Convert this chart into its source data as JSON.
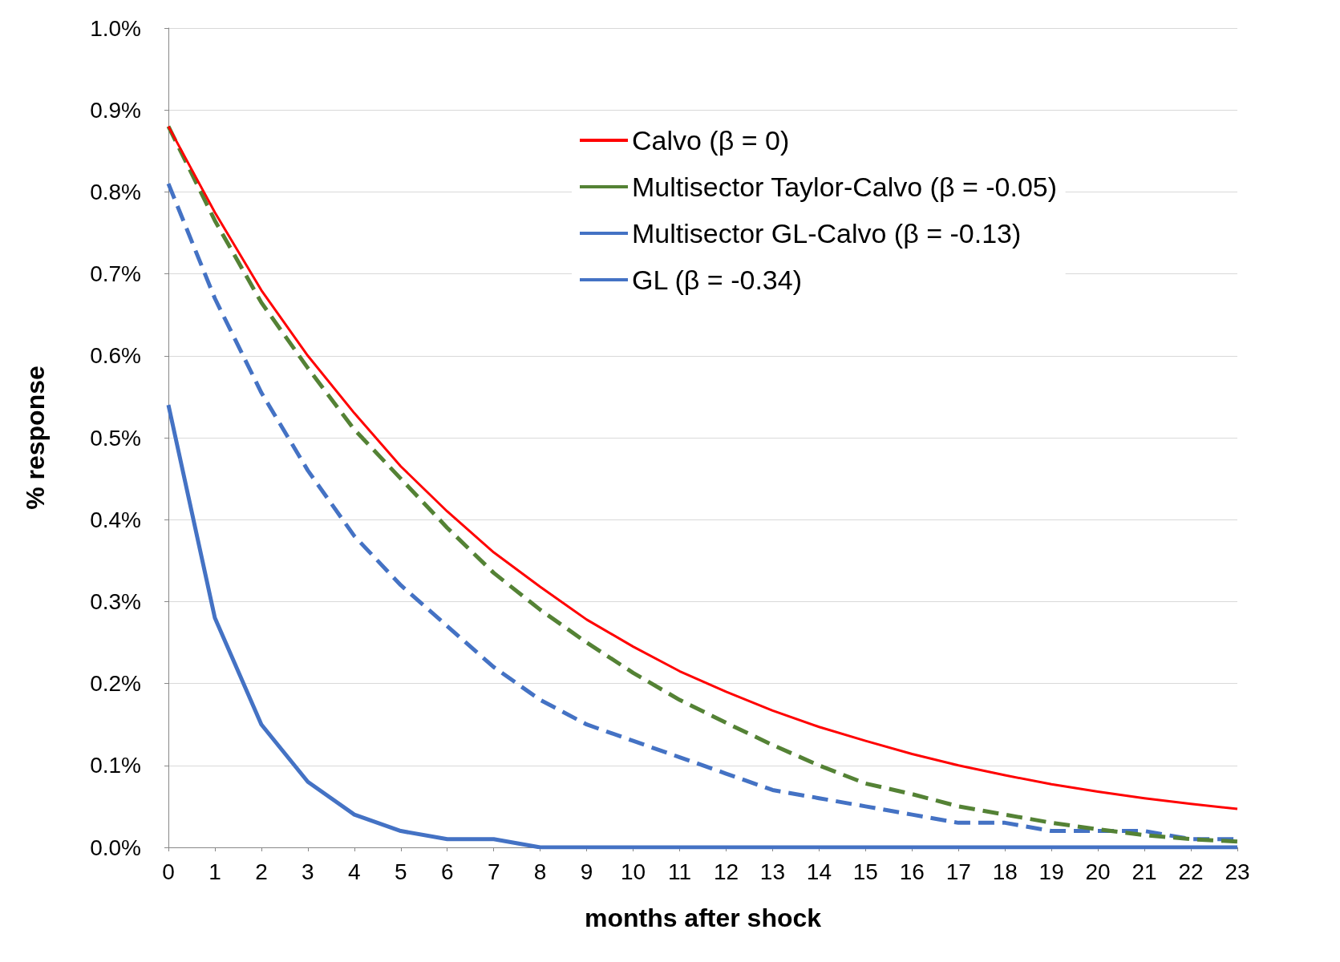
{
  "chart_data": {
    "type": "line",
    "xlabel": "months after shock",
    "ylabel": "% response",
    "x": [
      0,
      1,
      2,
      3,
      4,
      5,
      6,
      7,
      8,
      9,
      10,
      11,
      12,
      13,
      14,
      15,
      16,
      17,
      18,
      19,
      20,
      21,
      22,
      23
    ],
    "xlim": [
      0,
      23
    ],
    "xticks": [
      0,
      1,
      2,
      3,
      4,
      5,
      6,
      7,
      8,
      9,
      10,
      11,
      12,
      13,
      14,
      15,
      16,
      17,
      18,
      19,
      20,
      21,
      22,
      23
    ],
    "ylim": [
      0,
      1
    ],
    "yticks": [
      {
        "value": 0,
        "label": "0.0%"
      },
      {
        "value": 0.1,
        "label": "0.1%"
      },
      {
        "value": 0.2,
        "label": "0.2%"
      },
      {
        "value": 0.3,
        "label": "0.3%"
      },
      {
        "value": 0.4,
        "label": "0.4%"
      },
      {
        "value": 0.5,
        "label": "0.5%"
      },
      {
        "value": 0.6,
        "label": "0.6%"
      },
      {
        "value": 0.7,
        "label": "0.7%"
      },
      {
        "value": 0.8,
        "label": "0.8%"
      },
      {
        "value": 0.9,
        "label": "0.9%"
      },
      {
        "value": 1,
        "label": "1.0%"
      }
    ],
    "grid": "y",
    "legend": "top right",
    "marker": "none",
    "series": [
      {
        "name": "Calvo (β = 0)",
        "color": "#ff0000",
        "line_style": "solid",
        "values": [
          0.88,
          0.775,
          0.68,
          0.6,
          0.53,
          0.465,
          0.41,
          0.36,
          0.318,
          0.278,
          0.245,
          0.215,
          0.19,
          0.167,
          0.147,
          0.13,
          0.114,
          0.1,
          0.088,
          0.077,
          0.068,
          0.06,
          0.053,
          0.047
        ]
      },
      {
        "name": "Multisector Taylor-Calvo (β = -0.05)",
        "color": "#548235",
        "line_style": "dashed",
        "values": [
          0.88,
          0.765,
          0.665,
          0.585,
          0.51,
          0.45,
          0.39,
          0.335,
          0.29,
          0.25,
          0.213,
          0.18,
          0.152,
          0.125,
          0.1,
          0.078,
          0.065,
          0.05,
          0.04,
          0.03,
          0.022,
          0.015,
          0.01,
          0.007
        ]
      },
      {
        "name": "Multisector GL-Calvo (β = -0.13)",
        "color": "#4472c4",
        "line_style": "dashed",
        "values": [
          0.81,
          0.67,
          0.555,
          0.46,
          0.38,
          0.32,
          0.27,
          0.22,
          0.18,
          0.15,
          0.13,
          0.11,
          0.09,
          0.07,
          0.06,
          0.05,
          0.04,
          0.03,
          0.03,
          0.02,
          0.02,
          0.02,
          0.01,
          0.01
        ]
      },
      {
        "name": "GL (β = -0.34)",
        "color": "#4472c4",
        "line_style": "solid",
        "values": [
          0.54,
          0.28,
          0.15,
          0.08,
          0.04,
          0.02,
          0.01,
          0.01,
          0,
          0,
          0,
          0,
          0,
          0,
          0,
          0,
          0,
          0,
          0,
          0,
          0,
          0,
          0,
          0
        ]
      }
    ]
  }
}
